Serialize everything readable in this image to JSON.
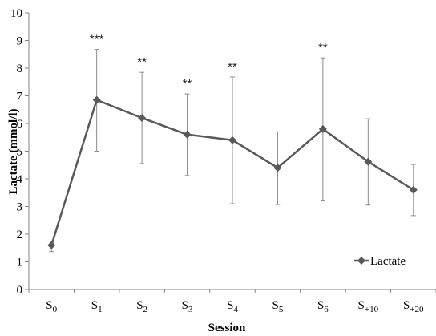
{
  "chart_data": {
    "type": "line",
    "xlabel": "Session",
    "ylabel": "Lactate (mmol/l)",
    "ylim": [
      0,
      10
    ],
    "yticks": [
      0,
      1,
      2,
      3,
      4,
      5,
      6,
      7,
      8,
      9,
      10
    ],
    "grid": false,
    "legend_position": "bottom-right",
    "categories": [
      {
        "base": "S",
        "sub": "0"
      },
      {
        "base": "S",
        "sub": "1"
      },
      {
        "base": "S",
        "sub": "2"
      },
      {
        "base": "S",
        "sub": "3"
      },
      {
        "base": "S",
        "sub": "4"
      },
      {
        "base": "S",
        "sub": "5"
      },
      {
        "base": "S",
        "sub": "6"
      },
      {
        "base": "S",
        "sub": "+10"
      },
      {
        "base": "S",
        "sub": "+20"
      }
    ],
    "series": [
      {
        "name": "Lactate",
        "color": "#595959",
        "values": [
          1.6,
          6.85,
          6.2,
          5.6,
          5.4,
          4.4,
          5.8,
          4.62,
          3.6
        ],
        "error_upper": [
          1.6,
          8.68,
          7.85,
          7.07,
          7.68,
          5.7,
          8.37,
          6.17,
          4.52
        ],
        "error_lower": [
          1.37,
          5.0,
          4.55,
          4.12,
          3.1,
          3.07,
          3.2,
          3.05,
          2.67
        ]
      }
    ],
    "annotations": [
      "",
      "***",
      "**",
      "**",
      "**",
      "",
      "**",
      "",
      ""
    ]
  }
}
